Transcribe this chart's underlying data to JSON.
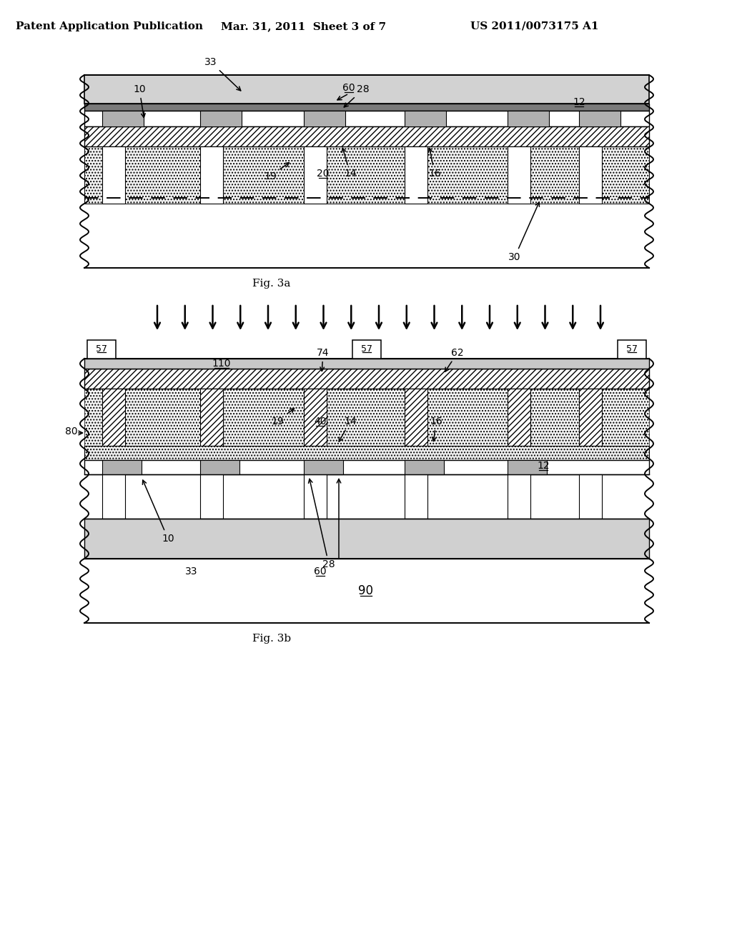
{
  "title_left": "Patent Application Publication",
  "title_mid": "Mar. 31, 2011  Sheet 3 of 7",
  "title_right": "US 2011/0073175 A1",
  "fig3a_label": "Fig. 3a",
  "fig3b_label": "Fig. 3b",
  "bg_color": "#ffffff"
}
